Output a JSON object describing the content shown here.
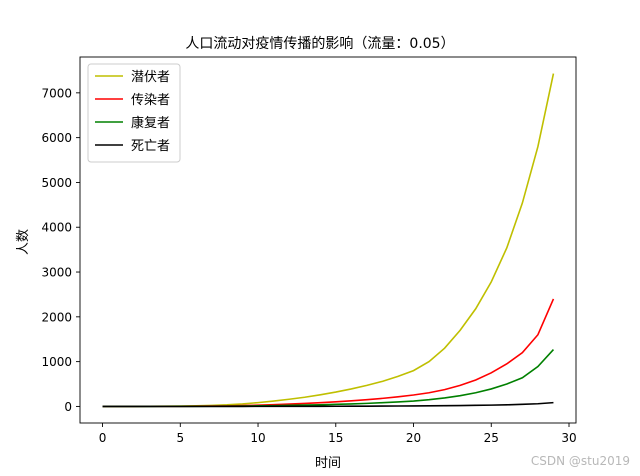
{
  "chart_data": {
    "type": "line",
    "title": "人口流动对疫情传播的影响（流量：0.05）",
    "xlabel": "时间",
    "ylabel": "人数",
    "xlim": [
      -1.45,
      30.45
    ],
    "ylim": [
      -370,
      7800
    ],
    "xticks": [
      0,
      5,
      10,
      15,
      20,
      25,
      30
    ],
    "yticks": [
      0,
      1000,
      2000,
      3000,
      4000,
      5000,
      6000,
      7000
    ],
    "grid": false,
    "legend_position": "top-left",
    "x": [
      0,
      1,
      2,
      3,
      4,
      5,
      6,
      7,
      8,
      9,
      10,
      11,
      12,
      13,
      14,
      15,
      16,
      17,
      18,
      19,
      20,
      21,
      22,
      23,
      24,
      25,
      26,
      27,
      28,
      29
    ],
    "series": [
      {
        "name": "潜伏者",
        "color": "#bfbf00",
        "values": [
          1,
          1.6,
          2.5,
          3.9,
          6,
          9.4,
          14.6,
          22.7,
          35,
          55,
          85,
          120,
          160,
          205,
          260,
          320,
          390,
          470,
          560,
          670,
          800,
          1000,
          1300,
          1700,
          2180,
          2780,
          3540,
          4540,
          5800,
          7430
        ]
      },
      {
        "name": "传染者",
        "color": "#ff0000",
        "values": [
          0,
          0.4,
          0.8,
          1.3,
          2.1,
          3.3,
          5.2,
          8,
          12.3,
          19,
          28,
          40,
          52,
          66,
          83,
          102,
          125,
          150,
          180,
          215,
          255,
          305,
          375,
          470,
          590,
          750,
          950,
          1200,
          1600,
          2400
        ]
      },
      {
        "name": "康复者",
        "color": "#008000",
        "values": [
          0,
          0.1,
          0.3,
          0.6,
          1,
          1.6,
          2.5,
          3.9,
          6,
          9,
          13,
          18,
          24,
          30,
          37,
          46,
          56,
          68,
          83,
          100,
          120,
          150,
          190,
          240,
          305,
          390,
          500,
          640,
          890,
          1270
        ]
      },
      {
        "name": "死亡者",
        "color": "#000000",
        "values": [
          0,
          0,
          0,
          0,
          0.1,
          0.1,
          0.2,
          0.3,
          0.5,
          0.7,
          1,
          1.4,
          1.9,
          2.5,
          3.2,
          4,
          5,
          6.2,
          7.6,
          9.3,
          11.3,
          13.7,
          16.6,
          20,
          24,
          29,
          36,
          46,
          60,
          85
        ]
      }
    ]
  },
  "watermark": "CSDN @stu2019"
}
